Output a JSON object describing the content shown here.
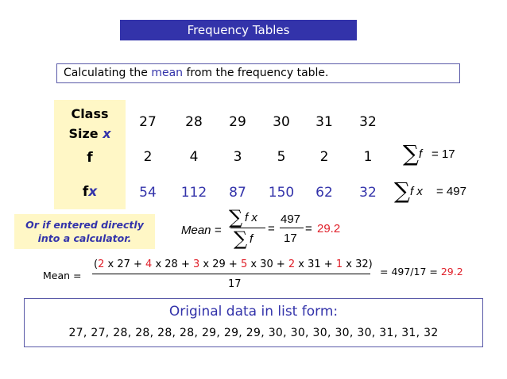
{
  "title": "Frequency Tables",
  "intro": {
    "before": "Calculating the ",
    "highlight": "mean",
    "after": " from the frequency table."
  },
  "table": {
    "class_label": "Class",
    "size_label": "Size ",
    "x_label": "x",
    "f_label": "f",
    "fx_f": "f",
    "fx_x": "x",
    "class_values": [
      "27",
      "28",
      "29",
      "30",
      "31",
      "32"
    ],
    "f_values": [
      "2",
      "4",
      "3",
      "5",
      "2",
      "1"
    ],
    "fx_values": [
      "54",
      "112",
      "87",
      "150",
      "62",
      "32"
    ]
  },
  "sums": {
    "sum_f_var": "f",
    "sum_f_eq": "= 17",
    "sum_fx_var": "f x",
    "sum_fx_eq": "= 497"
  },
  "note": {
    "line1": "Or if entered directly",
    "line2": "into a calculator."
  },
  "mean_formula": {
    "label": "Mean =",
    "num_var": "f x",
    "den_var": "f",
    "eq1": "=",
    "num_val": "497",
    "den_val": "17",
    "eq2": "=",
    "result": "29.2"
  },
  "expanded": {
    "label": "Mean =",
    "terms": [
      {
        "t": "(",
        "c": "b"
      },
      {
        "t": "2",
        "c": "r"
      },
      {
        "t": " x 27 + ",
        "c": "b"
      },
      {
        "t": "4",
        "c": "r"
      },
      {
        "t": " x 28 + ",
        "c": "b"
      },
      {
        "t": "3",
        "c": "r"
      },
      {
        "t": " x 29 + ",
        "c": "b"
      },
      {
        "t": "5",
        "c": "r"
      },
      {
        "t": " x 30 + ",
        "c": "b"
      },
      {
        "t": "2",
        "c": "r"
      },
      {
        "t": " x 31 + ",
        "c": "b"
      },
      {
        "t": "1",
        "c": "r"
      },
      {
        "t": " x 32)",
        "c": "b"
      }
    ],
    "denominator": "17",
    "result_text": "= 497/17 = ",
    "result_value": "29.2"
  },
  "list": {
    "title": "Original data in list form:",
    "values": "27, 27, 28, 28, 28, 28, 29, 29, 29, 30, 30, 30, 30, 30, 31, 31, 32"
  },
  "colors": {
    "accent": "#3333aa",
    "highlight_red": "#e0202a",
    "label_bg": "#fff7c6"
  }
}
